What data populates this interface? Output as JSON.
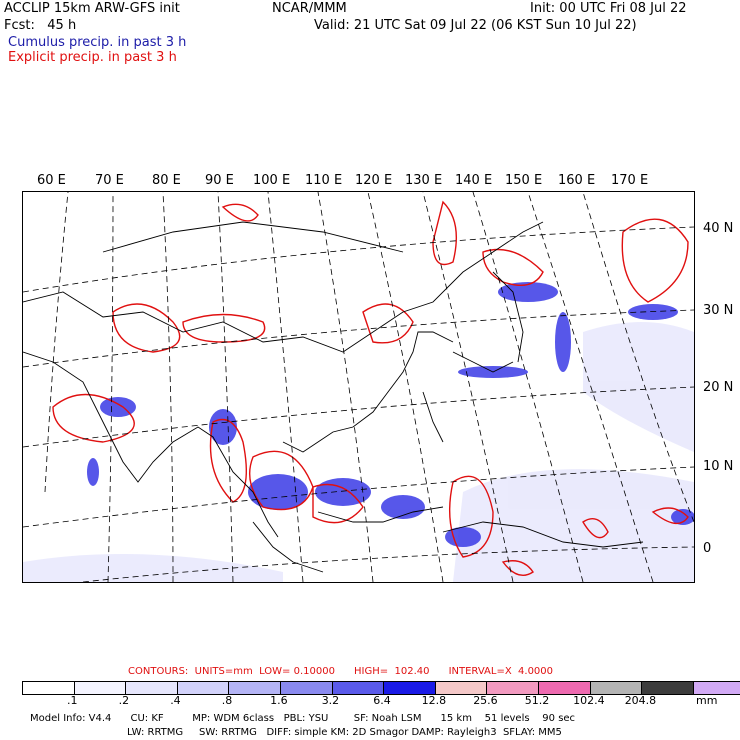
{
  "header": {
    "title": "ACCLIP 15km ARW-GFS init",
    "org": "NCAR/MMM",
    "init": "Init: 00 UTC Fri 08 Jul 22",
    "fcst": "Fcst:   45 h",
    "valid": "Valid: 21 UTC Sat 09 Jul 22 (06 KST Sun 10 Jul 22)",
    "cumulus_legend": "Cumulus precip. in past 3 h",
    "explicit_legend": "Explicit precip. in past 3 h"
  },
  "colors": {
    "cumulus": "#1c1ca8",
    "explicit": "#e01010",
    "precip_blue": "#3a3ae6",
    "precip_red": "#e01010"
  },
  "map": {
    "longitude_labels": [
      "60 E",
      "70 E",
      "80 E",
      "90 E",
      "100 E",
      "110 E",
      "120 E",
      "130 E",
      "140 E",
      "150 E",
      "160 E",
      "170 E"
    ],
    "latitude_labels": [
      "40 N",
      "30 N",
      "20 N",
      "10 N",
      "0"
    ]
  },
  "contours": {
    "text": "CONTOURS:  UNITS=mm  LOW= 0.10000      HIGH=  102.40      INTERVAL=X  4.0000"
  },
  "colorbar": {
    "colors": [
      "#ffffff",
      "#f4f4ff",
      "#e6e6fc",
      "#d2d2fa",
      "#b4b4f5",
      "#8a8aef",
      "#5a5aea",
      "#1a1ae6",
      "#f4c8c8",
      "#f29ac0",
      "#ee6ab0",
      "#b4b4b4",
      "#3c3c3c",
      "#d2aaf5"
    ],
    "labels": [
      ".1",
      ".2",
      ".4",
      ".8",
      "1.6",
      "3.2",
      "6.4",
      "12.8",
      "25.6",
      "51.2",
      "102.4",
      "204.8"
    ],
    "unit": "mm"
  },
  "footer": {
    "line1": "Model Info: V4.4      CU: KF         MP: WDM 6class   PBL: YSU        SF: Noah LSM      15 km    51 levels    90 sec",
    "line2": "LW: RRTMG     SW: RRTMG   DIFF: simple KM: 2D Smagor DAMP: Rayleigh3  SFLAY: MM5"
  }
}
